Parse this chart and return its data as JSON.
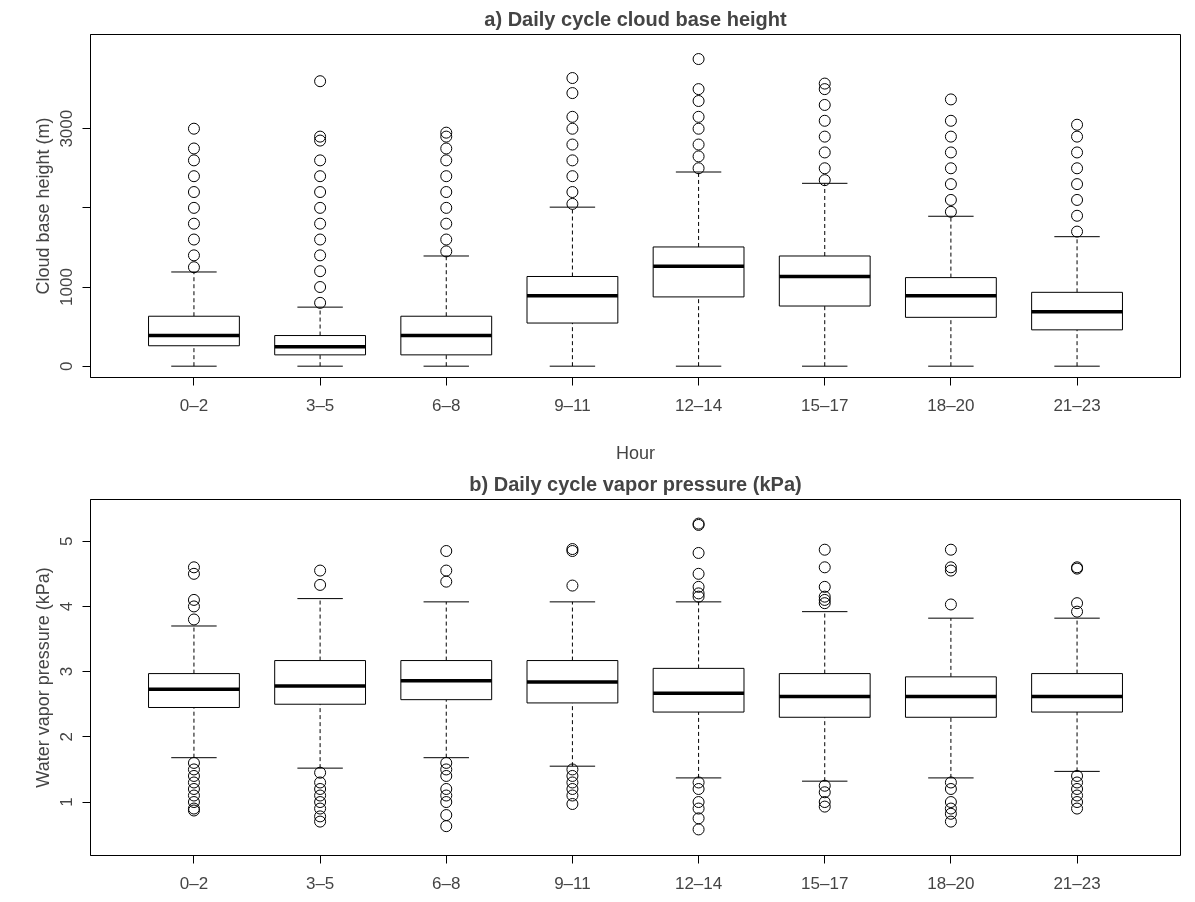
{
  "chart_data": [
    {
      "type": "box",
      "title": "a) Daily cycle cloud base height",
      "xlabel": "Hour",
      "ylabel": "Cloud base height (m)",
      "categories": [
        "0–2",
        "3–5",
        "6–8",
        "9–11",
        "12–14",
        "15–17",
        "18–20",
        "21–23"
      ],
      "ylim": [
        -143,
        4190
      ],
      "yticks": [
        0,
        1000,
        {
          "value": 2000,
          "label": null
        },
        3000
      ],
      "grid": false,
      "boxes": [
        {
          "low": 0,
          "q1": 258,
          "median": 387,
          "q3": 631,
          "high": 1190,
          "outliers": [
            1250,
            1400,
            1600,
            1800,
            2000,
            2200,
            2400,
            2600,
            2750,
            3000
          ]
        },
        {
          "low": 0,
          "q1": 143,
          "median": 244,
          "q3": 387,
          "high": 746,
          "outliers": [
            800,
            1000,
            1200,
            1400,
            1600,
            1800,
            2000,
            2200,
            2400,
            2600,
            2850,
            2900,
            3600
          ]
        },
        {
          "low": 0,
          "q1": 143,
          "median": 387,
          "q3": 631,
          "high": 1392,
          "outliers": [
            1450,
            1600,
            1800,
            2000,
            2200,
            2400,
            2600,
            2750,
            2900,
            2950
          ]
        },
        {
          "low": 0,
          "q1": 545,
          "median": 890,
          "q3": 1133,
          "high": 2009,
          "outliers": [
            2050,
            2200,
            2400,
            2600,
            2800,
            3000,
            3150,
            3450,
            3640
          ]
        },
        {
          "low": 0,
          "q1": 875,
          "median": 1263,
          "q3": 1506,
          "high": 2453,
          "outliers": [
            2500,
            2650,
            2800,
            3000,
            3150,
            3350,
            3500,
            3880
          ]
        },
        {
          "low": 0,
          "q1": 760,
          "median": 1133,
          "q3": 1392,
          "high": 2310,
          "outliers": [
            2350,
            2500,
            2700,
            2900,
            3100,
            3300,
            3500,
            3570
          ]
        },
        {
          "low": 0,
          "q1": 617,
          "median": 890,
          "q3": 1119,
          "high": 1894,
          "outliers": [
            1950,
            2100,
            2300,
            2500,
            2700,
            2900,
            3100,
            3370
          ]
        },
        {
          "low": 0,
          "q1": 459,
          "median": 689,
          "q3": 933,
          "high": 1636,
          "outliers": [
            1700,
            1900,
            2100,
            2300,
            2500,
            2700,
            2900,
            3050
          ]
        }
      ]
    },
    {
      "type": "box",
      "title": "b) Daily cycle vapor pressure (kPa)",
      "ylabel": "Water vapor pressure (kPa)",
      "categories": [
        "0–2",
        "3–5",
        "6–8",
        "9–11",
        "12–14",
        "15–17",
        "18–20",
        "21–23"
      ],
      "ylim": [
        0.18,
        5.64
      ],
      "yticks": [
        1,
        2,
        3,
        4,
        5
      ],
      "grid": false,
      "boxes": [
        {
          "low": 1.68,
          "q1": 2.45,
          "median": 2.73,
          "q3": 2.97,
          "high": 3.7,
          "outliers": [
            3.8,
            4.0,
            4.1,
            4.5,
            4.6,
            1.6,
            1.5,
            1.4,
            1.3,
            1.2,
            1.1,
            1.0,
            0.9,
            0.87
          ]
        },
        {
          "low": 1.52,
          "q1": 2.5,
          "median": 2.78,
          "q3": 3.17,
          "high": 4.12,
          "outliers": [
            4.33,
            4.55,
            1.45,
            1.3,
            1.2,
            1.1,
            1.0,
            0.9,
            0.78,
            0.7
          ]
        },
        {
          "low": 1.68,
          "q1": 2.57,
          "median": 2.86,
          "q3": 3.17,
          "high": 4.07,
          "outliers": [
            4.38,
            4.55,
            4.85,
            1.6,
            1.5,
            1.4,
            1.2,
            1.1,
            1.0,
            0.8,
            0.63
          ]
        },
        {
          "low": 1.55,
          "q1": 2.52,
          "median": 2.84,
          "q3": 3.17,
          "high": 4.07,
          "outliers": [
            4.32,
            4.85,
            4.88,
            1.5,
            1.4,
            1.3,
            1.2,
            1.1,
            0.97
          ]
        },
        {
          "low": 1.37,
          "q1": 2.38,
          "median": 2.67,
          "q3": 3.05,
          "high": 4.07,
          "outliers": [
            4.15,
            4.2,
            4.3,
            4.5,
            4.82,
            5.25,
            5.27,
            1.3,
            1.2,
            1.0,
            0.9,
            0.75,
            0.58
          ]
        },
        {
          "low": 1.32,
          "q1": 2.3,
          "median": 2.62,
          "q3": 2.97,
          "high": 3.92,
          "outliers": [
            4.05,
            4.1,
            4.15,
            4.3,
            4.6,
            4.87,
            1.25,
            1.15,
            1.0,
            0.93
          ]
        },
        {
          "low": 1.37,
          "q1": 2.3,
          "median": 2.62,
          "q3": 2.92,
          "high": 3.82,
          "outliers": [
            4.03,
            4.55,
            4.6,
            4.87,
            1.3,
            1.2,
            1.0,
            0.9,
            0.82,
            0.7
          ]
        },
        {
          "low": 1.47,
          "q1": 2.38,
          "median": 2.62,
          "q3": 2.97,
          "high": 3.82,
          "outliers": [
            3.92,
            4.05,
            4.58,
            4.6,
            1.4,
            1.3,
            1.2,
            1.1,
            1.0,
            0.9
          ]
        }
      ]
    }
  ]
}
